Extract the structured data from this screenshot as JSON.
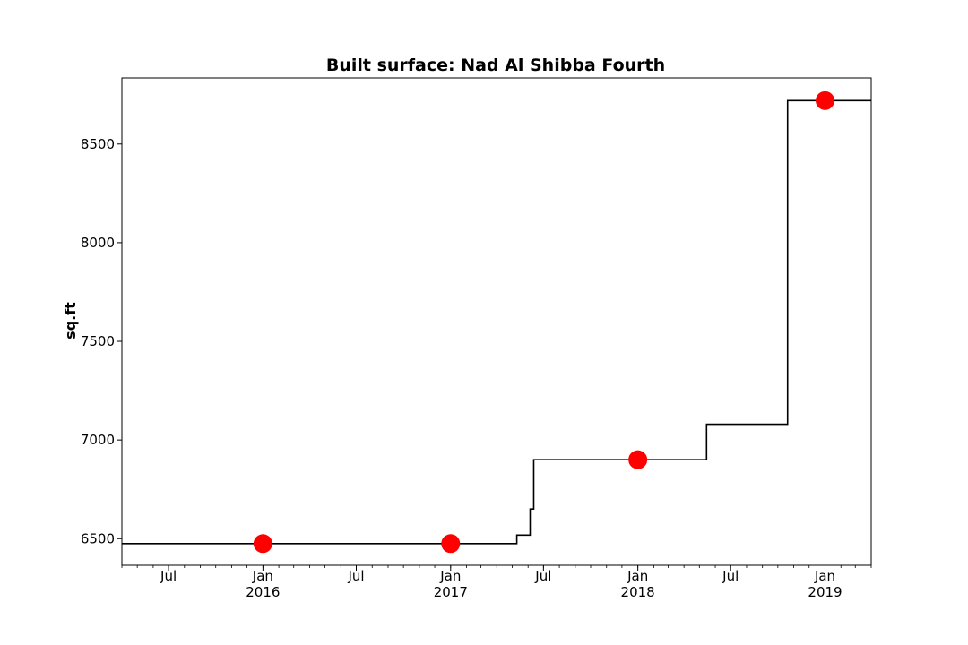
{
  "chart_data": {
    "type": "line",
    "title": "Built surface: Nad Al Shibba Fourth",
    "xlabel": "",
    "ylabel": "sq.ft",
    "xlim": [
      "2015-04-01",
      "2019-04-01"
    ],
    "ylim": [
      6365,
      8835
    ],
    "yticks": [
      6500,
      7000,
      7500,
      8000,
      8500
    ],
    "xticks": [
      {
        "date": "2015-07-01",
        "label": "Jul",
        "sub": ""
      },
      {
        "date": "2016-01-01",
        "label": "Jan",
        "sub": "2016"
      },
      {
        "date": "2016-07-01",
        "label": "Jul",
        "sub": ""
      },
      {
        "date": "2017-01-01",
        "label": "Jan",
        "sub": "2017"
      },
      {
        "date": "2017-07-01",
        "label": "Jul",
        "sub": ""
      },
      {
        "date": "2018-01-01",
        "label": "Jan",
        "sub": "2018"
      },
      {
        "date": "2018-07-01",
        "label": "Jul",
        "sub": ""
      },
      {
        "date": "2019-01-01",
        "label": "Jan",
        "sub": "2019"
      }
    ],
    "series": [
      {
        "style": "step",
        "color": "#000000",
        "points": [
          {
            "x": "2015-04-01",
            "y": 6475
          },
          {
            "x": "2017-05-10",
            "y": 6518
          },
          {
            "x": "2017-06-05",
            "y": 6650
          },
          {
            "x": "2017-06-12",
            "y": 6900
          },
          {
            "x": "2018-05-15",
            "y": 7080
          },
          {
            "x": "2018-10-20",
            "y": 8720
          },
          {
            "x": "2019-04-01",
            "y": 8720
          }
        ]
      },
      {
        "style": "markers",
        "color": "#ff0000",
        "points": [
          {
            "x": "2016-01-01",
            "y": 6475
          },
          {
            "x": "2017-01-01",
            "y": 6475
          },
          {
            "x": "2018-01-01",
            "y": 6900
          },
          {
            "x": "2019-01-01",
            "y": 8720
          }
        ]
      }
    ]
  }
}
